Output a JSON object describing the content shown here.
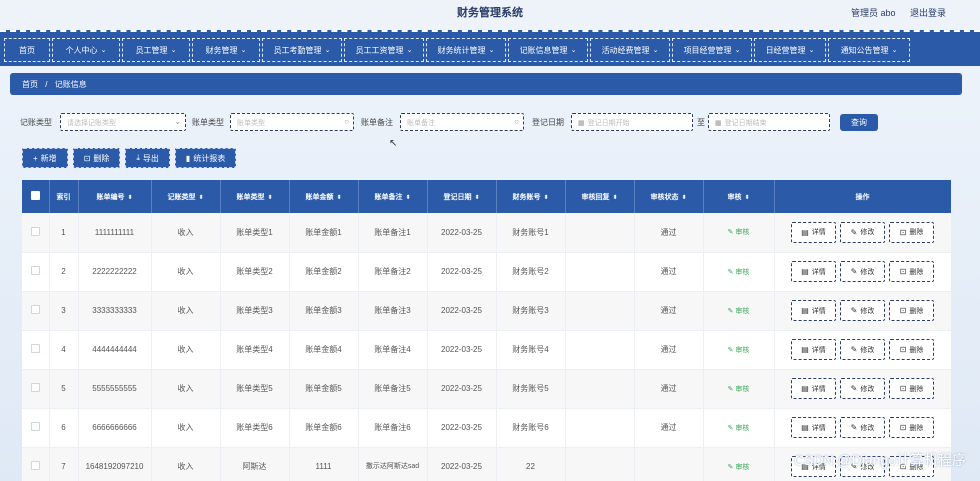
{
  "app": {
    "title": "财务管理系统",
    "user": "管理员 abo",
    "logout": "退出登录"
  },
  "nav": [
    {
      "label": "首页",
      "has_menu": false
    },
    {
      "label": "个人中心",
      "has_menu": true
    },
    {
      "label": "员工管理",
      "has_menu": true
    },
    {
      "label": "财务管理",
      "has_menu": true
    },
    {
      "label": "员工考勤管理",
      "has_menu": true
    },
    {
      "label": "员工工资管理",
      "has_menu": true
    },
    {
      "label": "财务统计管理",
      "has_menu": true
    },
    {
      "label": "记账信息管理",
      "has_menu": true
    },
    {
      "label": "活动经费管理",
      "has_menu": true
    },
    {
      "label": "项目经营管理",
      "has_menu": true
    },
    {
      "label": "日经营管理",
      "has_menu": true
    },
    {
      "label": "通知公告管理",
      "has_menu": true
    }
  ],
  "breadcrumb": {
    "home": "首页",
    "sep": "/",
    "current": "记账信息"
  },
  "search": {
    "type_label": "记账类型",
    "type_placeholder": "请选择记账类型",
    "bill_type_label": "账单类型",
    "bill_type_placeholder": "账单类型",
    "note_label": "账单备注",
    "note_placeholder": "账单备注",
    "date_label": "登记日期",
    "date_from_placeholder": "登记日期开始",
    "date_to_sep": "至",
    "date_to_placeholder": "登记日期结束",
    "query": "查询"
  },
  "actions": {
    "add": "新增",
    "delete": "删除",
    "export": "导出",
    "report": "统计报表"
  },
  "table": {
    "columns": [
      "索引",
      "账单编号",
      "记账类型",
      "账单类型",
      "账单金额",
      "账单备注",
      "登记日期",
      "财务账号",
      "审核回复",
      "审核状态",
      "审核",
      "操作"
    ],
    "audit_label": "审核",
    "op_detail": "详情",
    "op_edit": "修改",
    "op_delete": "删除",
    "rows": [
      {
        "idx": "1",
        "no": "1111111111",
        "type": "收入",
        "bill_type": "账单类型1",
        "amount": "账单金额1",
        "note": "账单备注1",
        "date": "2022-03-25",
        "account": "财务账号1",
        "reply": "",
        "status": "通过"
      },
      {
        "idx": "2",
        "no": "2222222222",
        "type": "收入",
        "bill_type": "账单类型2",
        "amount": "账单金额2",
        "note": "账单备注2",
        "date": "2022-03-25",
        "account": "财务账号2",
        "reply": "",
        "status": "通过"
      },
      {
        "idx": "3",
        "no": "3333333333",
        "type": "收入",
        "bill_type": "账单类型3",
        "amount": "账单金额3",
        "note": "账单备注3",
        "date": "2022-03-25",
        "account": "财务账号3",
        "reply": "",
        "status": "通过"
      },
      {
        "idx": "4",
        "no": "4444444444",
        "type": "收入",
        "bill_type": "账单类型4",
        "amount": "账单金额4",
        "note": "账单备注4",
        "date": "2022-03-25",
        "account": "财务账号4",
        "reply": "",
        "status": "通过"
      },
      {
        "idx": "5",
        "no": "5555555555",
        "type": "收入",
        "bill_type": "账单类型5",
        "amount": "账单金额5",
        "note": "账单备注5",
        "date": "2022-03-25",
        "account": "财务账号5",
        "reply": "",
        "status": "通过"
      },
      {
        "idx": "6",
        "no": "6666666666",
        "type": "收入",
        "bill_type": "账单类型6",
        "amount": "账单金额6",
        "note": "账单备注6",
        "date": "2022-03-25",
        "account": "财务账号6",
        "reply": "",
        "status": "通过"
      },
      {
        "idx": "7",
        "no": "1648192097210",
        "type": "收入",
        "bill_type": "阿斯达",
        "amount": "1111",
        "note": "撒示达阿斯达sad",
        "date": "2022-03-25",
        "account": "22",
        "reply": "",
        "status": ""
      }
    ]
  },
  "watermark": "CSDN @Django计算机程序"
}
